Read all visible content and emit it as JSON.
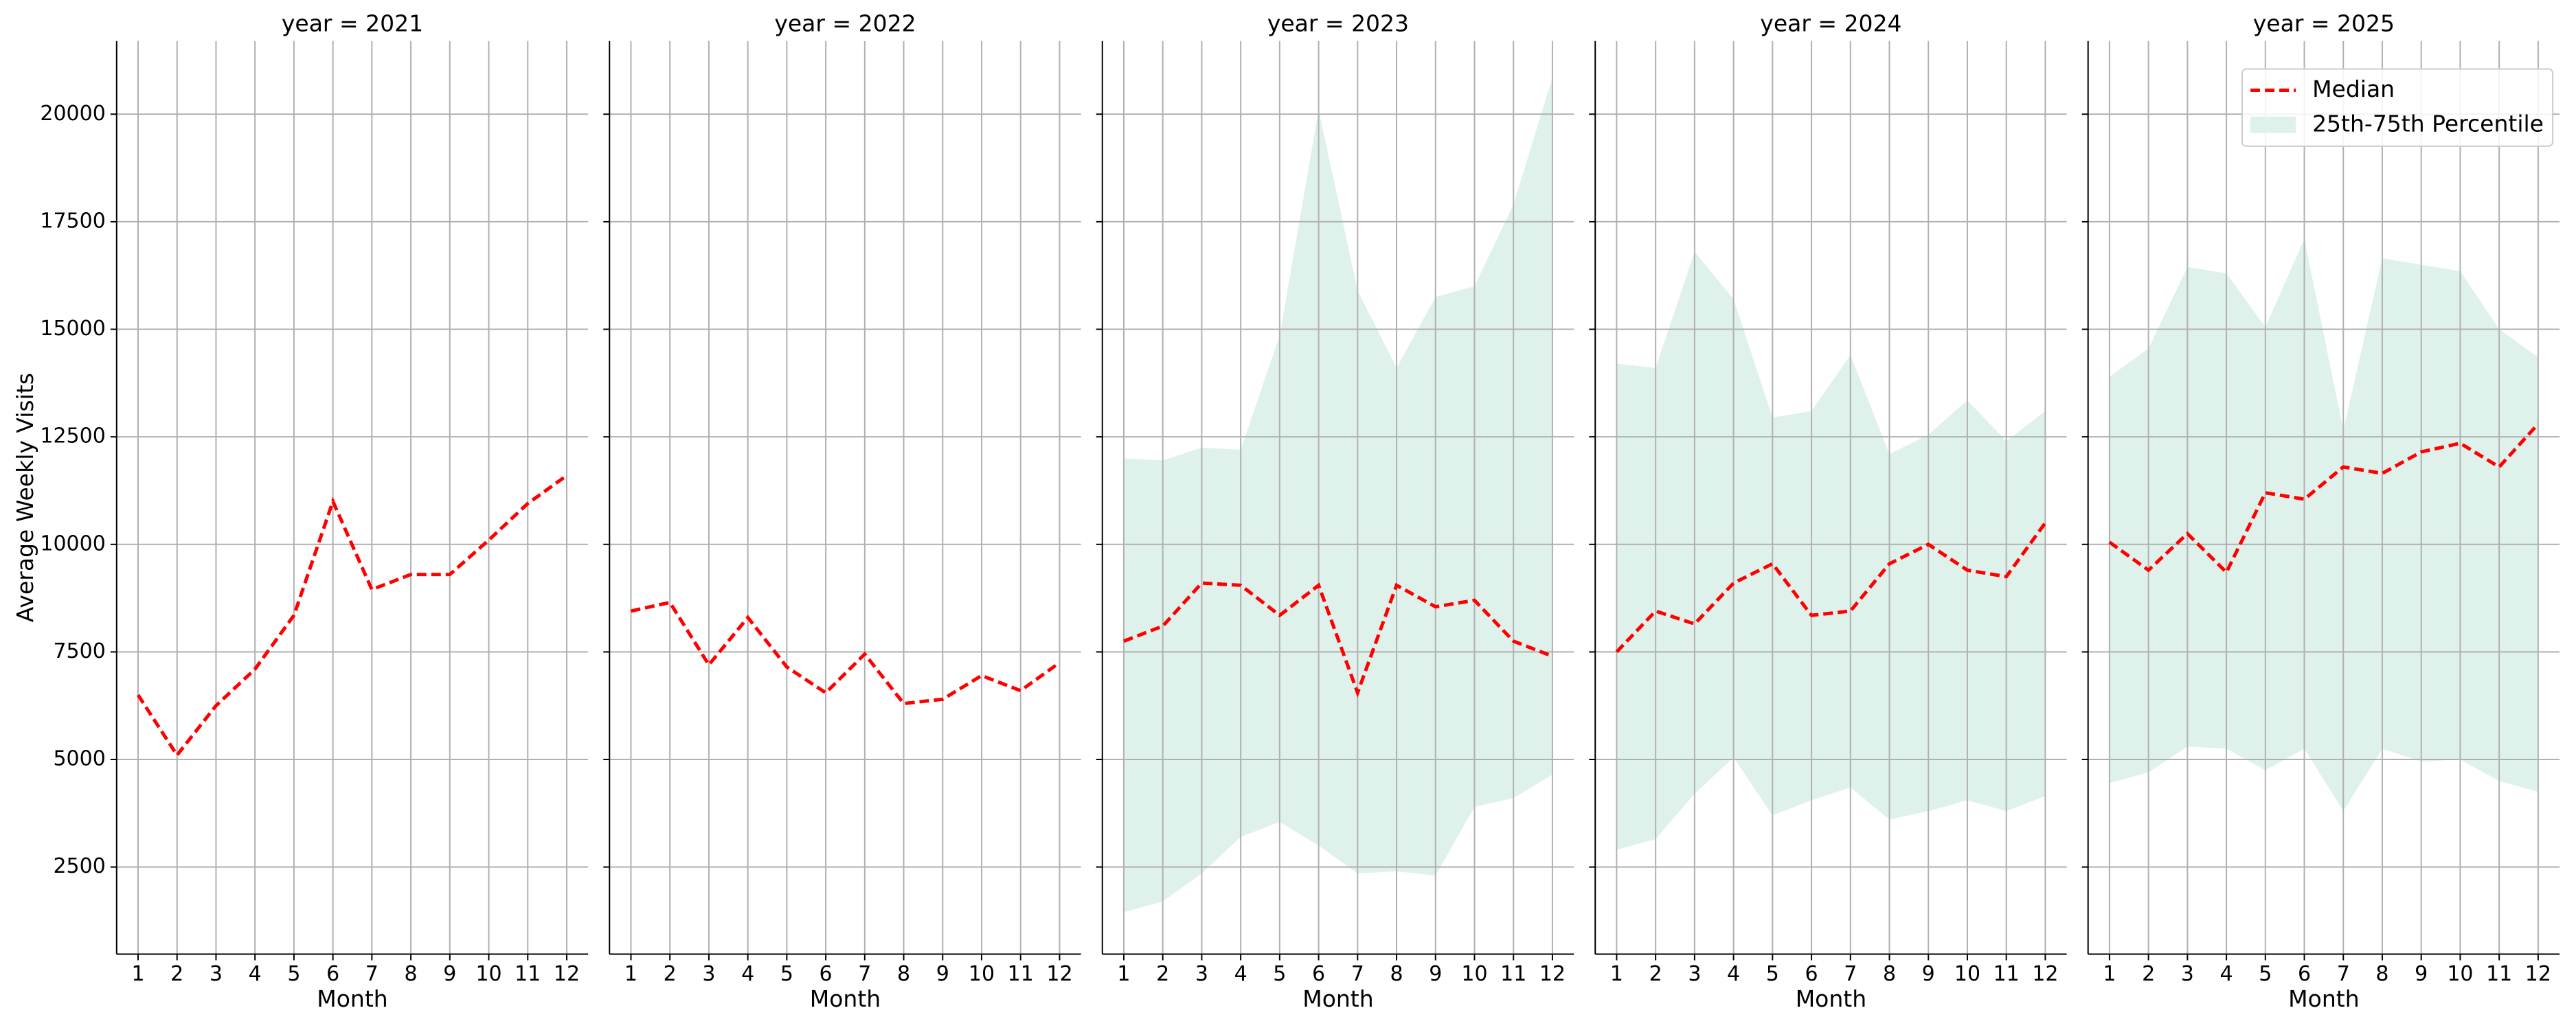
{
  "chart_data": [
    {
      "type": "line",
      "title": "year = 2021",
      "xlabel": "Month",
      "ylabel": "Average Weekly Visits",
      "x": [
        1,
        2,
        3,
        4,
        5,
        6,
        7,
        8,
        9,
        10,
        11,
        12
      ],
      "xlim": [
        0.45,
        12.55
      ],
      "xticks": [
        1,
        2,
        3,
        4,
        5,
        6,
        7,
        8,
        9,
        10,
        11,
        12
      ],
      "ylim": [
        475,
        21700
      ],
      "yticks": [
        2500,
        5000,
        7500,
        10000,
        12500,
        15000,
        17500,
        20000
      ],
      "grid": true,
      "series": [
        {
          "name": "Median",
          "color": "#ff0000",
          "values": [
            6500,
            5100,
            6250,
            7100,
            8350,
            11000,
            8950,
            9300,
            9300,
            10100,
            10950,
            11600
          ]
        }
      ]
    },
    {
      "type": "line",
      "title": "year = 2022",
      "xlabel": "Month",
      "x": [
        1,
        2,
        3,
        4,
        5,
        6,
        7,
        8,
        9,
        10,
        11,
        12
      ],
      "xlim": [
        0.45,
        12.55
      ],
      "xticks": [
        1,
        2,
        3,
        4,
        5,
        6,
        7,
        8,
        9,
        10,
        11,
        12
      ],
      "ylim": [
        475,
        21700
      ],
      "yticks": [
        2500,
        5000,
        7500,
        10000,
        12500,
        15000,
        17500,
        20000
      ],
      "grid": true,
      "series": [
        {
          "name": "Median",
          "color": "#ff0000",
          "values": [
            8450,
            8650,
            7200,
            8300,
            7150,
            6550,
            7450,
            6300,
            6400,
            6950,
            6600,
            7250
          ]
        }
      ]
    },
    {
      "type": "line",
      "title": "year = 2023",
      "xlabel": "Month",
      "x": [
        1,
        2,
        3,
        4,
        5,
        6,
        7,
        8,
        9,
        10,
        11,
        12
      ],
      "xlim": [
        0.45,
        12.55
      ],
      "xticks": [
        1,
        2,
        3,
        4,
        5,
        6,
        7,
        8,
        9,
        10,
        11,
        12
      ],
      "ylim": [
        475,
        21700
      ],
      "yticks": [
        2500,
        5000,
        7500,
        10000,
        12500,
        15000,
        17500,
        20000
      ],
      "grid": true,
      "series": [
        {
          "name": "Median",
          "color": "#ff0000",
          "values": [
            7750,
            8100,
            9100,
            9050,
            8350,
            9050,
            6550,
            9050,
            8550,
            8700,
            7750,
            7400
          ]
        },
        {
          "name": "25th-75th Percentile",
          "color": "#dff1eb",
          "lower": [
            1450,
            1700,
            2350,
            3200,
            3550,
            3000,
            2350,
            2400,
            2300,
            3900,
            4100,
            4650
          ],
          "upper": [
            12000,
            11950,
            12250,
            12200,
            14850,
            20100,
            15900,
            14100,
            15750,
            16000,
            17900,
            20850
          ]
        }
      ]
    },
    {
      "type": "line",
      "title": "year = 2024",
      "xlabel": "Month",
      "x": [
        1,
        2,
        3,
        4,
        5,
        6,
        7,
        8,
        9,
        10,
        11,
        12
      ],
      "xlim": [
        0.45,
        12.55
      ],
      "xticks": [
        1,
        2,
        3,
        4,
        5,
        6,
        7,
        8,
        9,
        10,
        11,
        12
      ],
      "ylim": [
        475,
        21700
      ],
      "yticks": [
        2500,
        5000,
        7500,
        10000,
        12500,
        15000,
        17500,
        20000
      ],
      "grid": true,
      "series": [
        {
          "name": "Median",
          "color": "#ff0000",
          "values": [
            7500,
            8450,
            8150,
            9100,
            9550,
            8350,
            8450,
            9550,
            10000,
            9400,
            9250,
            10500
          ]
        },
        {
          "name": "25th-75th Percentile",
          "color": "#dff1eb",
          "lower": [
            2900,
            3150,
            4200,
            5050,
            3700,
            4050,
            4350,
            3600,
            3800,
            4050,
            3800,
            4150
          ],
          "upper": [
            14200,
            14100,
            16800,
            15700,
            12950,
            13100,
            14400,
            12100,
            12550,
            13350,
            12400,
            13100
          ]
        }
      ]
    },
    {
      "type": "line",
      "title": "year = 2025",
      "xlabel": "Month",
      "legend": "upper right",
      "x": [
        1,
        2,
        3,
        4,
        5,
        6,
        7,
        8,
        9,
        10,
        11,
        12
      ],
      "xlim": [
        0.45,
        12.55
      ],
      "xticks": [
        1,
        2,
        3,
        4,
        5,
        6,
        7,
        8,
        9,
        10,
        11,
        12
      ],
      "ylim": [
        475,
        21700
      ],
      "yticks": [
        2500,
        5000,
        7500,
        10000,
        12500,
        15000,
        17500,
        20000
      ],
      "grid": true,
      "series": [
        {
          "name": "Median",
          "color": "#ff0000",
          "values": [
            10050,
            9400,
            10250,
            9350,
            11200,
            11050,
            11800,
            11650,
            12150,
            12350,
            11800,
            12800
          ]
        },
        {
          "name": "25th-75th Percentile",
          "color": "#dff1eb",
          "lower": [
            4450,
            4700,
            5300,
            5250,
            4750,
            5250,
            3800,
            5250,
            4950,
            5000,
            4500,
            4250
          ],
          "upper": [
            13900,
            14550,
            16450,
            16300,
            15050,
            17100,
            12650,
            16650,
            16500,
            16350,
            15000,
            14350
          ]
        }
      ]
    }
  ]
}
